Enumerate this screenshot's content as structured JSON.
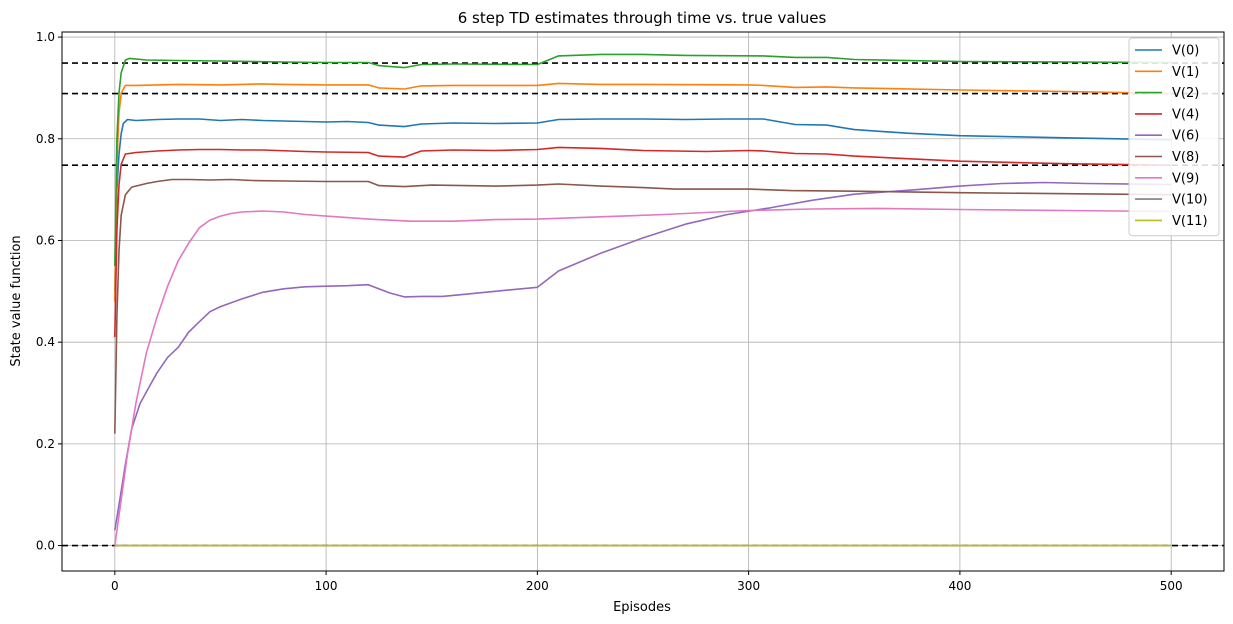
{
  "chart_data": {
    "type": "line",
    "title": "6 step TD estimates through time vs. true values",
    "xlabel": "Episodes",
    "ylabel": "State value function",
    "xlim": [
      -25,
      525
    ],
    "ylim": [
      -0.05,
      1.01
    ],
    "x_ticks": [
      0,
      100,
      200,
      300,
      400,
      500
    ],
    "y_ticks": [
      0.0,
      0.2,
      0.4,
      0.6,
      0.8,
      1.0
    ],
    "x_tick_labels": [
      "0",
      "100",
      "200",
      "300",
      "400",
      "500"
    ],
    "y_tick_labels": [
      "0.0",
      "0.2",
      "0.4",
      "0.6",
      "0.8",
      "1.0"
    ],
    "grid": true,
    "legend_position": "top-right",
    "reference_lines": {
      "style": "dashed",
      "color": "#000000",
      "values": [
        0.949,
        0.889,
        0.748,
        0.0
      ]
    },
    "series": [
      {
        "name": "V(0)",
        "color": "#1f77b4",
        "points": [
          [
            0,
            0.5
          ],
          [
            1,
            0.7
          ],
          [
            2,
            0.77
          ],
          [
            3,
            0.81
          ],
          [
            4,
            0.83
          ],
          [
            6,
            0.838
          ],
          [
            10,
            0.836
          ],
          [
            20,
            0.838
          ],
          [
            30,
            0.839
          ],
          [
            40,
            0.839
          ],
          [
            50,
            0.836
          ],
          [
            60,
            0.838
          ],
          [
            70,
            0.836
          ],
          [
            80,
            0.835
          ],
          [
            100,
            0.833
          ],
          [
            110,
            0.834
          ],
          [
            120,
            0.832
          ],
          [
            125,
            0.827
          ],
          [
            137,
            0.824
          ],
          [
            145,
            0.829
          ],
          [
            160,
            0.831
          ],
          [
            180,
            0.83
          ],
          [
            200,
            0.831
          ],
          [
            210,
            0.838
          ],
          [
            230,
            0.839
          ],
          [
            250,
            0.839
          ],
          [
            270,
            0.838
          ],
          [
            290,
            0.839
          ],
          [
            307,
            0.839
          ],
          [
            322,
            0.828
          ],
          [
            337,
            0.827
          ],
          [
            350,
            0.818
          ],
          [
            375,
            0.811
          ],
          [
            400,
            0.806
          ],
          [
            450,
            0.802
          ],
          [
            500,
            0.798
          ]
        ]
      },
      {
        "name": "V(1)",
        "color": "#ff7f0e",
        "points": [
          [
            0,
            0.48
          ],
          [
            1,
            0.75
          ],
          [
            2,
            0.85
          ],
          [
            3,
            0.89
          ],
          [
            5,
            0.905
          ],
          [
            10,
            0.905
          ],
          [
            20,
            0.906
          ],
          [
            30,
            0.907
          ],
          [
            50,
            0.906
          ],
          [
            60,
            0.907
          ],
          [
            70,
            0.908
          ],
          [
            80,
            0.907
          ],
          [
            100,
            0.906
          ],
          [
            120,
            0.906
          ],
          [
            125,
            0.9
          ],
          [
            137,
            0.898
          ],
          [
            145,
            0.904
          ],
          [
            160,
            0.905
          ],
          [
            200,
            0.905
          ],
          [
            210,
            0.909
          ],
          [
            230,
            0.907
          ],
          [
            250,
            0.907
          ],
          [
            300,
            0.906
          ],
          [
            307,
            0.905
          ],
          [
            322,
            0.901
          ],
          [
            337,
            0.902
          ],
          [
            350,
            0.9
          ],
          [
            400,
            0.896
          ],
          [
            450,
            0.893
          ],
          [
            500,
            0.889
          ]
        ]
      },
      {
        "name": "V(2)",
        "color": "#2ca02c",
        "points": [
          [
            0,
            0.55
          ],
          [
            1,
            0.8
          ],
          [
            2,
            0.89
          ],
          [
            3,
            0.93
          ],
          [
            5,
            0.955
          ],
          [
            7,
            0.958
          ],
          [
            15,
            0.955
          ],
          [
            30,
            0.954
          ],
          [
            50,
            0.953
          ],
          [
            80,
            0.951
          ],
          [
            100,
            0.95
          ],
          [
            120,
            0.95
          ],
          [
            125,
            0.944
          ],
          [
            137,
            0.94
          ],
          [
            145,
            0.946
          ],
          [
            160,
            0.947
          ],
          [
            200,
            0.946
          ],
          [
            210,
            0.963
          ],
          [
            230,
            0.966
          ],
          [
            250,
            0.966
          ],
          [
            270,
            0.964
          ],
          [
            307,
            0.963
          ],
          [
            322,
            0.96
          ],
          [
            337,
            0.96
          ],
          [
            350,
            0.956
          ],
          [
            400,
            0.952
          ],
          [
            450,
            0.951
          ],
          [
            500,
            0.95
          ]
        ]
      },
      {
        "name": "V(4)",
        "color": "#d62728",
        "points": [
          [
            0,
            0.41
          ],
          [
            1,
            0.62
          ],
          [
            2,
            0.71
          ],
          [
            3,
            0.75
          ],
          [
            5,
            0.77
          ],
          [
            10,
            0.773
          ],
          [
            20,
            0.776
          ],
          [
            30,
            0.778
          ],
          [
            40,
            0.779
          ],
          [
            50,
            0.779
          ],
          [
            60,
            0.778
          ],
          [
            70,
            0.778
          ],
          [
            90,
            0.775
          ],
          [
            100,
            0.774
          ],
          [
            120,
            0.773
          ],
          [
            125,
            0.766
          ],
          [
            137,
            0.764
          ],
          [
            145,
            0.776
          ],
          [
            160,
            0.778
          ],
          [
            180,
            0.777
          ],
          [
            200,
            0.779
          ],
          [
            210,
            0.783
          ],
          [
            230,
            0.781
          ],
          [
            250,
            0.777
          ],
          [
            280,
            0.775
          ],
          [
            300,
            0.777
          ],
          [
            307,
            0.776
          ],
          [
            322,
            0.771
          ],
          [
            337,
            0.77
          ],
          [
            350,
            0.766
          ],
          [
            400,
            0.756
          ],
          [
            450,
            0.751
          ],
          [
            500,
            0.748
          ]
        ]
      },
      {
        "name": "V(6)",
        "color": "#9467bd",
        "points": [
          [
            0,
            0.03
          ],
          [
            2,
            0.08
          ],
          [
            5,
            0.16
          ],
          [
            8,
            0.23
          ],
          [
            12,
            0.28
          ],
          [
            16,
            0.31
          ],
          [
            20,
            0.34
          ],
          [
            25,
            0.37
          ],
          [
            30,
            0.39
          ],
          [
            35,
            0.42
          ],
          [
            40,
            0.44
          ],
          [
            45,
            0.46
          ],
          [
            50,
            0.47
          ],
          [
            60,
            0.485
          ],
          [
            70,
            0.498
          ],
          [
            80,
            0.505
          ],
          [
            90,
            0.509
          ],
          [
            100,
            0.51
          ],
          [
            110,
            0.511
          ],
          [
            120,
            0.513
          ],
          [
            130,
            0.497
          ],
          [
            137,
            0.489
          ],
          [
            145,
            0.49
          ],
          [
            155,
            0.49
          ],
          [
            165,
            0.494
          ],
          [
            180,
            0.5
          ],
          [
            200,
            0.508
          ],
          [
            210,
            0.54
          ],
          [
            230,
            0.575
          ],
          [
            250,
            0.605
          ],
          [
            270,
            0.632
          ],
          [
            290,
            0.651
          ],
          [
            310,
            0.664
          ],
          [
            330,
            0.679
          ],
          [
            350,
            0.691
          ],
          [
            380,
            0.7
          ],
          [
            400,
            0.707
          ],
          [
            420,
            0.712
          ],
          [
            440,
            0.714
          ],
          [
            460,
            0.712
          ],
          [
            500,
            0.71
          ]
        ]
      },
      {
        "name": "V(8)",
        "color": "#8c564b",
        "points": [
          [
            0,
            0.22
          ],
          [
            1,
            0.45
          ],
          [
            2,
            0.58
          ],
          [
            3,
            0.65
          ],
          [
            5,
            0.69
          ],
          [
            8,
            0.705
          ],
          [
            15,
            0.712
          ],
          [
            20,
            0.716
          ],
          [
            27,
            0.72
          ],
          [
            35,
            0.72
          ],
          [
            45,
            0.719
          ],
          [
            55,
            0.72
          ],
          [
            65,
            0.718
          ],
          [
            80,
            0.717
          ],
          [
            100,
            0.716
          ],
          [
            120,
            0.716
          ],
          [
            125,
            0.708
          ],
          [
            137,
            0.706
          ],
          [
            150,
            0.709
          ],
          [
            180,
            0.707
          ],
          [
            200,
            0.709
          ],
          [
            210,
            0.711
          ],
          [
            230,
            0.707
          ],
          [
            250,
            0.704
          ],
          [
            265,
            0.701
          ],
          [
            300,
            0.701
          ],
          [
            320,
            0.698
          ],
          [
            350,
            0.697
          ],
          [
            400,
            0.694
          ],
          [
            450,
            0.692
          ],
          [
            500,
            0.69
          ]
        ]
      },
      {
        "name": "V(9)",
        "color": "#e377c2",
        "points": [
          [
            0,
            0.0
          ],
          [
            3,
            0.09
          ],
          [
            6,
            0.18
          ],
          [
            10,
            0.28
          ],
          [
            15,
            0.38
          ],
          [
            20,
            0.45
          ],
          [
            25,
            0.51
          ],
          [
            30,
            0.56
          ],
          [
            35,
            0.595
          ],
          [
            40,
            0.625
          ],
          [
            45,
            0.64
          ],
          [
            50,
            0.648
          ],
          [
            55,
            0.653
          ],
          [
            60,
            0.656
          ],
          [
            70,
            0.658
          ],
          [
            80,
            0.656
          ],
          [
            90,
            0.651
          ],
          [
            100,
            0.648
          ],
          [
            120,
            0.642
          ],
          [
            140,
            0.638
          ],
          [
            160,
            0.638
          ],
          [
            180,
            0.641
          ],
          [
            200,
            0.642
          ],
          [
            220,
            0.645
          ],
          [
            240,
            0.648
          ],
          [
            260,
            0.651
          ],
          [
            280,
            0.655
          ],
          [
            300,
            0.659
          ],
          [
            330,
            0.662
          ],
          [
            360,
            0.663
          ],
          [
            400,
            0.661
          ],
          [
            450,
            0.659
          ],
          [
            500,
            0.657
          ]
        ]
      },
      {
        "name": "V(10)",
        "color": "#7f7f7f",
        "points": [
          [
            0,
            0.0
          ],
          [
            500,
            0.0
          ]
        ]
      },
      {
        "name": "V(11)",
        "color": "#bcbd22",
        "points": [
          [
            0,
            0.0
          ],
          [
            500,
            0.0
          ]
        ]
      }
    ]
  }
}
